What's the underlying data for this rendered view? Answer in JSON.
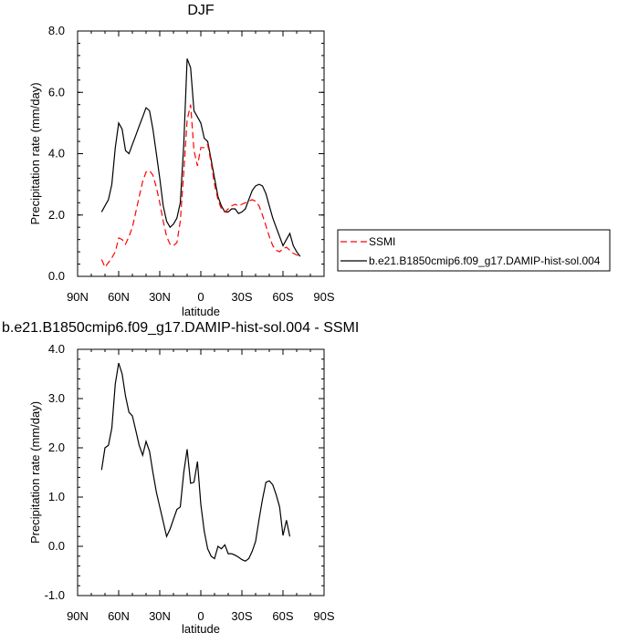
{
  "chart_data": [
    {
      "type": "line",
      "title": "DJF",
      "xlabel": "latitude",
      "ylabel": "Precipitation rate (mm/day)",
      "xlim": [
        90,
        -90
      ],
      "ylim": [
        0,
        8
      ],
      "x_tick_values": [
        90,
        60,
        30,
        0,
        -30,
        -60,
        -90
      ],
      "x_tick_labels": [
        "90N",
        "60N",
        "30N",
        "0",
        "30S",
        "60S",
        "90S"
      ],
      "y_tick_values": [
        0,
        2,
        4,
        6,
        8
      ],
      "y_tick_labels": [
        "0.0",
        "2.0",
        "4.0",
        "6.0",
        "8.0"
      ],
      "grid": false,
      "legend_position": "right",
      "legend_entries": [
        "SSMI",
        "b.e21.B1850cmip6.f09_g17.DAMIP-hist-sol.004"
      ],
      "series": [
        {
          "name": "b.e21.B1850cmip6.f09_g17.DAMIP-hist-sol.004",
          "color": "#000000",
          "dash": "solid",
          "x": [
            72.5,
            70,
            67.5,
            65,
            62.5,
            60,
            57.5,
            55,
            52.5,
            50,
            47.5,
            45,
            42.5,
            40,
            37.5,
            35,
            32.5,
            30,
            27.5,
            25,
            22.5,
            20,
            17.5,
            15,
            12.5,
            10,
            7.5,
            5,
            2.5,
            0,
            -2.5,
            -5,
            -7.5,
            -10,
            -12.5,
            -15,
            -17.5,
            -20,
            -22.5,
            -25,
            -27.5,
            -30,
            -32.5,
            -35,
            -37.5,
            -40,
            -42.5,
            -45,
            -47.5,
            -50,
            -52.5,
            -55,
            -57.5,
            -60,
            -62.5,
            -65,
            -67.5,
            -70,
            -72.5
          ],
          "values": [
            2.1,
            2.3,
            2.5,
            3.0,
            4.2,
            5.0,
            4.8,
            4.1,
            4.0,
            4.3,
            4.6,
            4.9,
            5.2,
            5.5,
            5.4,
            4.8,
            4.0,
            3.2,
            2.3,
            1.8,
            1.6,
            1.7,
            1.9,
            2.4,
            4.3,
            7.1,
            6.8,
            5.4,
            5.2,
            5.0,
            4.5,
            4.4,
            3.8,
            3.2,
            2.6,
            2.3,
            2.1,
            2.1,
            2.2,
            2.2,
            2.05,
            2.1,
            2.2,
            2.5,
            2.8,
            2.95,
            3.0,
            2.95,
            2.7,
            2.3,
            1.9,
            1.6,
            1.3,
            1.0,
            1.2,
            1.4,
            1.0,
            0.8,
            0.65
          ]
        },
        {
          "name": "SSMI",
          "color": "#ff0000",
          "dash": "dashed",
          "x": [
            72.5,
            70,
            67.5,
            65,
            62.5,
            60,
            57.5,
            55,
            52.5,
            50,
            47.5,
            45,
            42.5,
            40,
            37.5,
            35,
            32.5,
            30,
            27.5,
            25,
            22.5,
            20,
            17.5,
            15,
            12.5,
            10,
            7.5,
            5,
            2.5,
            0,
            -2.5,
            -5,
            -7.5,
            -10,
            -12.5,
            -15,
            -17.5,
            -20,
            -22.5,
            -25,
            -27.5,
            -30,
            -32.5,
            -35,
            -37.5,
            -40,
            -42.5,
            -45,
            -47.5,
            -50,
            -52.5,
            -55,
            -57.5,
            -60,
            -62.5,
            -65,
            -67.5,
            -70,
            -72.5
          ],
          "values": [
            0.55,
            0.3,
            0.45,
            0.6,
            0.8,
            1.25,
            1.2,
            1.05,
            1.3,
            1.6,
            2.1,
            2.6,
            3.1,
            3.4,
            3.45,
            3.3,
            2.9,
            2.4,
            1.8,
            1.3,
            1.05,
            1.0,
            1.1,
            1.8,
            3.4,
            5.1,
            5.6,
            4.1,
            3.6,
            4.2,
            4.2,
            4.3,
            3.7,
            3.0,
            2.5,
            2.2,
            2.1,
            2.2,
            2.3,
            2.35,
            2.3,
            2.35,
            2.4,
            2.45,
            2.5,
            2.45,
            2.3,
            2.0,
            1.65,
            1.3,
            1.0,
            0.85,
            0.8,
            0.9,
            0.95,
            0.85,
            0.75,
            0.7,
            0.65
          ]
        }
      ]
    },
    {
      "type": "line",
      "title": "b.e21.B1850cmip6.f09_g17.DAMIP-hist-sol.004 - SSMI",
      "xlabel": "latitude",
      "ylabel": "Precipitation rate (mm/day)",
      "xlim": [
        90,
        -90
      ],
      "ylim": [
        -1,
        4
      ],
      "x_tick_values": [
        90,
        60,
        30,
        0,
        -30,
        -60,
        -90
      ],
      "x_tick_labels": [
        "90N",
        "60N",
        "30N",
        "0",
        "30S",
        "60S",
        "90S"
      ],
      "y_tick_values": [
        -1,
        0,
        1,
        2,
        3,
        4
      ],
      "y_tick_labels": [
        "-1.0",
        "0.0",
        "1.0",
        "2.0",
        "3.0",
        "4.0"
      ],
      "grid": false,
      "series": [
        {
          "color": "#000000",
          "dash": "solid",
          "x": [
            72.5,
            70,
            67.5,
            65,
            62.5,
            60,
            57.5,
            55,
            52.5,
            50,
            47.5,
            45,
            42.5,
            40,
            37.5,
            35,
            32.5,
            30,
            27.5,
            25,
            22.5,
            20,
            17.5,
            15,
            12.5,
            10,
            7.5,
            5,
            2.5,
            0,
            -2.5,
            -5,
            -7.5,
            -10,
            -12.5,
            -15,
            -17.5,
            -20,
            -22.5,
            -25,
            -27.5,
            -30,
            -32.5,
            -35,
            -37.5,
            -40,
            -42.5,
            -45,
            -47.5,
            -50,
            -52.5,
            -55,
            -57.5,
            -60,
            -62.5,
            -65,
            -67.5,
            -70,
            -72.5
          ],
          "values": [
            1.55,
            2.0,
            2.05,
            2.4,
            3.3,
            3.72,
            3.5,
            3.05,
            2.72,
            2.65,
            2.35,
            2.05,
            1.85,
            2.13,
            1.93,
            1.5,
            1.1,
            0.8,
            0.5,
            0.2,
            0.35,
            0.55,
            0.75,
            0.8,
            1.5,
            1.97,
            1.28,
            1.3,
            1.72,
            0.85,
            0.3,
            -0.05,
            -0.2,
            -0.25,
            0.0,
            -0.05,
            0.03,
            -0.15,
            -0.15,
            -0.18,
            -0.22,
            -0.27,
            -0.3,
            -0.25,
            -0.1,
            0.1,
            0.55,
            0.95,
            1.3,
            1.33,
            1.25,
            1.05,
            0.8,
            0.22,
            0.53,
            0.2,
            null,
            null,
            null
          ]
        }
      ]
    }
  ]
}
